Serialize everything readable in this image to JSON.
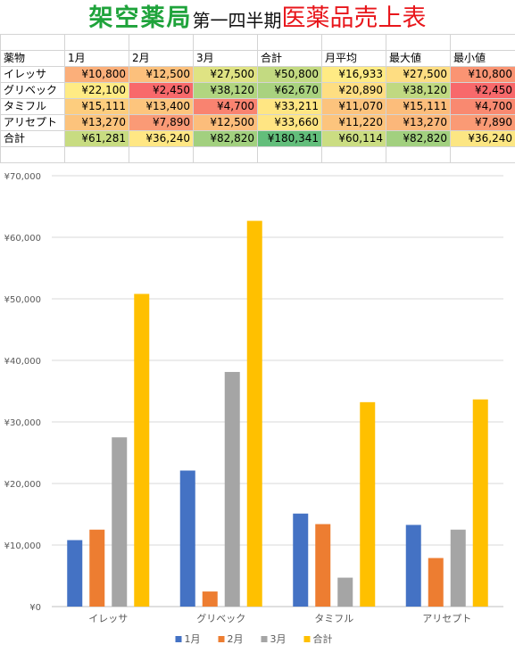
{
  "title": {
    "brand": "架空薬局",
    "middle": "第一四半期",
    "main": "医薬品売上表"
  },
  "table": {
    "headers": [
      "薬物",
      "1月",
      "2月",
      "3月",
      "合計",
      "月平均",
      "最大値",
      "最小値"
    ],
    "rows": [
      {
        "label": "イレッサ",
        "cells": [
          "¥10,800",
          "¥12,500",
          "¥27,500",
          "¥50,800",
          "¥16,933",
          "¥27,500",
          "¥10,800"
        ],
        "colors": [
          "#fbaf7a",
          "#fcc07c",
          "#dfe383",
          "#c3da81",
          "#ffeb84",
          "#fedd82",
          "#fa9473"
        ]
      },
      {
        "label": "グリベック",
        "cells": [
          "¥22,100",
          "¥2,450",
          "¥38,120",
          "¥62,670",
          "¥20,890",
          "¥38,120",
          "¥2,450"
        ],
        "colors": [
          "#ffeb84",
          "#f8696b",
          "#b1d580",
          "#a9d27f",
          "#fede82",
          "#c0d981",
          "#f8696b"
        ]
      },
      {
        "label": "タミフル",
        "cells": [
          "¥15,111",
          "¥13,400",
          "¥4,700",
          "¥33,211",
          "¥11,070",
          "¥15,111",
          "¥4,700"
        ],
        "colors": [
          "#fdcd7e",
          "#fdc57d",
          "#f98370",
          "#ffe683",
          "#fcc37d",
          "#fcbd7b",
          "#f98970"
        ]
      },
      {
        "label": "アリセプト",
        "cells": [
          "¥13,270",
          "¥7,890",
          "¥12,500",
          "¥33,660",
          "¥11,220",
          "¥13,270",
          "¥7,890"
        ],
        "colors": [
          "#fcc37c",
          "#fa9a76",
          "#fcbd7b",
          "#ffe583",
          "#fcc47d",
          "#fbb77a",
          "#fa9a75"
        ]
      },
      {
        "label": "合計",
        "cells": [
          "¥61,281",
          "¥36,240",
          "¥82,820",
          "¥180,341",
          "¥60,114",
          "¥82,820",
          "¥36,240"
        ],
        "colors": [
          "#c8dc81",
          "#ffe784",
          "#a2d07f",
          "#63be7b",
          "#cbdd82",
          "#a2d07f",
          "#fce683"
        ]
      }
    ]
  },
  "chart_data": {
    "type": "bar",
    "title": "",
    "xlabel": "",
    "ylabel": "",
    "categories": [
      "イレッサ",
      "グリベック",
      "タミフル",
      "アリセプト"
    ],
    "series": [
      {
        "name": "1月",
        "color": "#4472c4",
        "values": [
          10800,
          22100,
          15111,
          13270
        ]
      },
      {
        "name": "2月",
        "color": "#ed7d31",
        "values": [
          12500,
          2450,
          13400,
          7890
        ]
      },
      {
        "name": "3月",
        "color": "#a5a5a5",
        "values": [
          27500,
          38120,
          4700,
          12500
        ]
      },
      {
        "name": "合計",
        "color": "#ffc000",
        "values": [
          50800,
          62670,
          33211,
          33660
        ]
      }
    ],
    "ylim": [
      0,
      70000
    ],
    "yticks": [
      0,
      10000,
      20000,
      30000,
      40000,
      50000,
      60000,
      70000
    ],
    "ytick_labels": [
      "¥0",
      "¥10,000",
      "¥20,000",
      "¥30,000",
      "¥40,000",
      "¥50,000",
      "¥60,000",
      "¥70,000"
    ],
    "grid": true,
    "legend_position": "bottom"
  }
}
